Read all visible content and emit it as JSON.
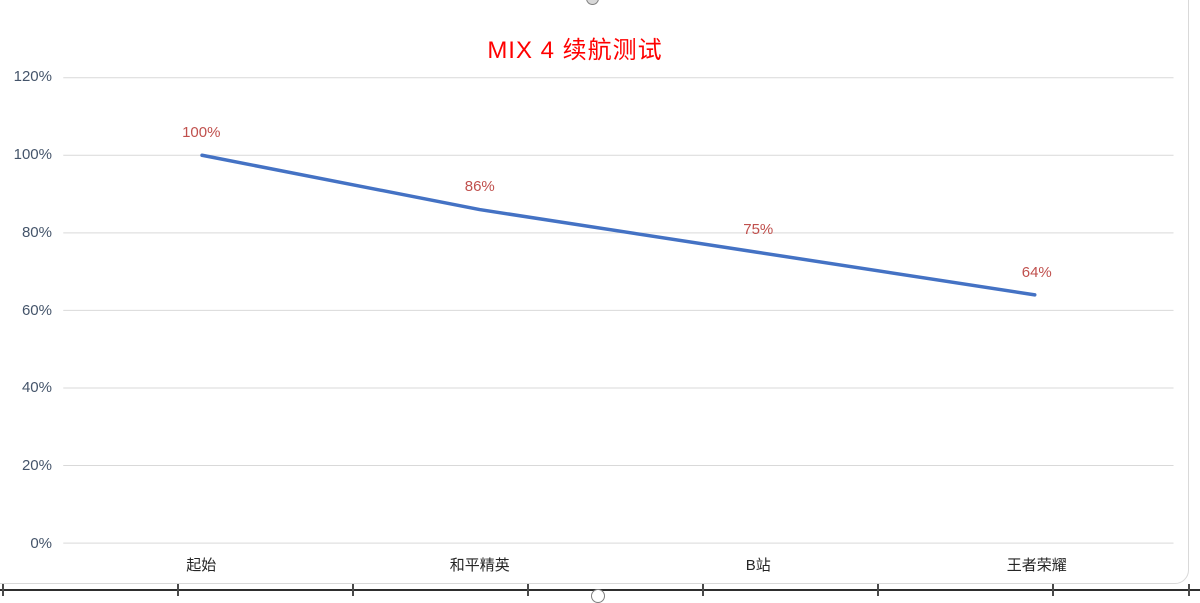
{
  "chart_data": {
    "type": "line",
    "title": "MIX 4 续航测试",
    "categories": [
      "起始",
      "和平精英",
      "B站",
      "王者荣耀"
    ],
    "values": [
      100,
      86,
      75,
      64
    ],
    "data_labels": [
      "100%",
      "86%",
      "75%",
      "64%"
    ],
    "y_axis": {
      "tick_values": [
        0,
        20,
        40,
        60,
        80,
        100,
        120
      ],
      "tick_labels": [
        "0%",
        "20%",
        "40%",
        "60%",
        "80%",
        "100%",
        "120%"
      ],
      "min": 0,
      "max": 120
    },
    "grid": true,
    "legend": "none",
    "colors": {
      "line": "#4472C4",
      "data_label": "#C0504D",
      "title": "#FF0000",
      "y_tick_label": "#44546A",
      "category_label": "#262626",
      "gridline": "#D9D9D9"
    }
  }
}
